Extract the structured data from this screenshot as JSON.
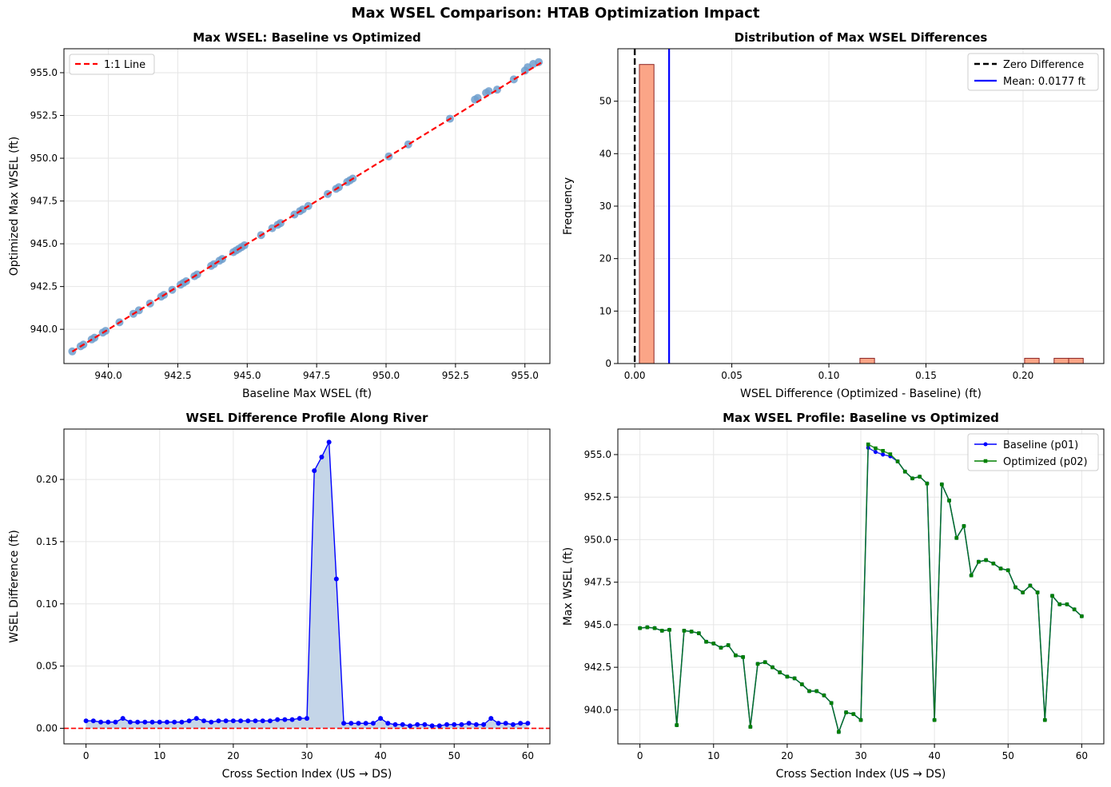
{
  "figure_title": "Max WSEL Comparison: HTAB Optimization Impact",
  "colors": {
    "scatter_point": "#6f9fce",
    "one_to_one": "#ff0000",
    "hist_bar": "#fba587",
    "hist_edge": "#8b2323",
    "zero_line": "#000000",
    "mean_line": "#0000ff",
    "diff_line": "#0000ff",
    "diff_fill": "#c4d5e8",
    "baseline": "#0000ff",
    "optimized": "#008000",
    "grid": "#e6e6e6"
  },
  "chart_data": [
    {
      "id": "scatter",
      "type": "scatter",
      "title": "Max WSEL: Baseline vs Optimized",
      "xlabel": "Baseline Max WSEL (ft)",
      "ylabel": "Optimized Max WSEL (ft)",
      "xlim": [
        938.4,
        955.9
      ],
      "ylim": [
        938.0,
        956.4
      ],
      "xticks": [
        940,
        942.5,
        945,
        947.5,
        950,
        952.5,
        955
      ],
      "xtick_labels": [
        "940.0",
        "942.5",
        "945.0",
        "947.5",
        "950.0",
        "952.5",
        "955.0"
      ],
      "yticks": [
        940,
        942.5,
        945,
        947.5,
        950,
        952.5,
        955
      ],
      "ytick_labels": [
        "940.0",
        "942.5",
        "945.0",
        "947.5",
        "950.0",
        "952.5",
        "955.0"
      ],
      "grid": true,
      "legend_position": "upper-left",
      "legend": [
        "1:1 Line"
      ],
      "reference_line": [
        938.7,
        955.6
      ],
      "points": [
        [
          938.7,
          938.71
        ],
        [
          939.0,
          939.01
        ],
        [
          939.1,
          939.11
        ],
        [
          939.4,
          939.41
        ],
        [
          939.5,
          939.51
        ],
        [
          939.8,
          939.81
        ],
        [
          939.9,
          939.91
        ],
        [
          940.4,
          940.41
        ],
        [
          940.9,
          940.91
        ],
        [
          941.1,
          941.11
        ],
        [
          941.5,
          941.51
        ],
        [
          941.9,
          941.91
        ],
        [
          942.0,
          942.01
        ],
        [
          942.3,
          942.31
        ],
        [
          942.6,
          942.61
        ],
        [
          942.7,
          942.71
        ],
        [
          942.8,
          942.81
        ],
        [
          943.1,
          943.11
        ],
        [
          943.2,
          943.21
        ],
        [
          943.7,
          943.71
        ],
        [
          943.8,
          943.81
        ],
        [
          944.0,
          944.01
        ],
        [
          944.1,
          944.11
        ],
        [
          944.5,
          944.51
        ],
        [
          944.6,
          944.61
        ],
        [
          944.7,
          944.71
        ],
        [
          944.8,
          944.81
        ],
        [
          944.9,
          944.91
        ],
        [
          945.5,
          945.51
        ],
        [
          945.9,
          945.91
        ],
        [
          946.1,
          946.11
        ],
        [
          946.2,
          946.21
        ],
        [
          946.7,
          946.71
        ],
        [
          946.9,
          946.91
        ],
        [
          947.0,
          947.01
        ],
        [
          947.2,
          947.21
        ],
        [
          947.9,
          947.91
        ],
        [
          948.2,
          948.21
        ],
        [
          948.3,
          948.31
        ],
        [
          948.6,
          948.61
        ],
        [
          948.7,
          948.71
        ],
        [
          948.8,
          948.81
        ],
        [
          950.1,
          950.11
        ],
        [
          950.8,
          950.81
        ],
        [
          952.3,
          952.31
        ],
        [
          953.2,
          953.43
        ],
        [
          953.3,
          953.52
        ],
        [
          953.6,
          953.82
        ],
        [
          953.7,
          953.92
        ],
        [
          954.0,
          954.01
        ],
        [
          954.6,
          954.61
        ],
        [
          955.0,
          955.12
        ],
        [
          955.1,
          955.32
        ],
        [
          955.3,
          955.51
        ],
        [
          955.5,
          955.62
        ]
      ]
    },
    {
      "id": "histogram",
      "type": "bar",
      "title": "Distribution of Max WSEL Differences",
      "xlabel": "WSEL Difference (Optimized - Baseline) (ft)",
      "ylabel": "Frequency",
      "xlim": [
        -0.0087,
        0.2416
      ],
      "ylim": [
        0,
        60
      ],
      "xticks": [
        0,
        0.05,
        0.1,
        0.15,
        0.2
      ],
      "xtick_labels": [
        "0.00",
        "0.05",
        "0.10",
        "0.15",
        "0.20"
      ],
      "yticks": [
        0,
        10,
        20,
        30,
        40,
        50
      ],
      "ytick_labels": [
        "0",
        "10",
        "20",
        "30",
        "40",
        "50"
      ],
      "grid": true,
      "legend_position": "upper-right",
      "legend": [
        "Zero Difference",
        "Mean: 0.0177 ft"
      ],
      "mean": 0.0177,
      "bins": [
        {
          "x0": 0.0024,
          "x1": 0.0099,
          "count": 57
        },
        {
          "x0": 0.116,
          "x1": 0.1235,
          "count": 1
        },
        {
          "x0": 0.2008,
          "x1": 0.2083,
          "count": 1
        },
        {
          "x0": 0.216,
          "x1": 0.2235,
          "count": 1
        },
        {
          "x0": 0.2235,
          "x1": 0.231,
          "count": 1
        }
      ]
    },
    {
      "id": "difference-profile",
      "type": "line",
      "title": "WSEL Difference Profile Along River",
      "xlabel": "Cross Section Index (US → DS)",
      "ylabel": "WSEL Difference (ft)",
      "xlim": [
        -3,
        63
      ],
      "ylim": [
        -0.0125,
        0.2405
      ],
      "xticks": [
        0,
        10,
        20,
        30,
        40,
        50,
        60
      ],
      "xtick_labels": [
        "0",
        "10",
        "20",
        "30",
        "40",
        "50",
        "60"
      ],
      "yticks": [
        0,
        0.05,
        0.1,
        0.15,
        0.2
      ],
      "ytick_labels": [
        "0.00",
        "0.05",
        "0.10",
        "0.15",
        "0.20"
      ],
      "grid": true,
      "zero_line": 0,
      "values": [
        0.006,
        0.006,
        0.005,
        0.005,
        0.005,
        0.008,
        0.005,
        0.005,
        0.005,
        0.005,
        0.005,
        0.005,
        0.005,
        0.005,
        0.006,
        0.008,
        0.006,
        0.005,
        0.006,
        0.006,
        0.006,
        0.006,
        0.006,
        0.006,
        0.006,
        0.006,
        0.007,
        0.007,
        0.007,
        0.008,
        0.008,
        0.207,
        0.218,
        0.23,
        0.12,
        0.004,
        0.004,
        0.004,
        0.004,
        0.004,
        0.008,
        0.004,
        0.003,
        0.003,
        0.002,
        0.003,
        0.003,
        0.002,
        0.002,
        0.003,
        0.003,
        0.003,
        0.004,
        0.003,
        0.003,
        0.008,
        0.004,
        0.004,
        0.003,
        0.004,
        0.004
      ]
    },
    {
      "id": "wsel-profile",
      "type": "line",
      "title": "Max WSEL Profile: Baseline vs Optimized",
      "xlabel": "Cross Section Index (US → DS)",
      "ylabel": "Max WSEL (ft)",
      "xlim": [
        -3,
        63
      ],
      "ylim": [
        938.0,
        956.5
      ],
      "xticks": [
        0,
        10,
        20,
        30,
        40,
        50,
        60
      ],
      "xtick_labels": [
        "0",
        "10",
        "20",
        "30",
        "40",
        "50",
        "60"
      ],
      "yticks": [
        940,
        942.5,
        945,
        947.5,
        950,
        952.5,
        955
      ],
      "ytick_labels": [
        "940.0",
        "942.5",
        "945.0",
        "947.5",
        "950.0",
        "952.5",
        "955.0"
      ],
      "grid": true,
      "legend_position": "upper-right",
      "series": [
        {
          "name": "Baseline (p01)",
          "values": [
            944.8,
            944.85,
            944.8,
            944.65,
            944.7,
            939.1,
            944.65,
            944.6,
            944.5,
            944.0,
            943.9,
            943.65,
            943.8,
            943.2,
            943.1,
            939.0,
            942.7,
            942.8,
            942.5,
            942.2,
            941.95,
            941.85,
            941.5,
            941.1,
            941.1,
            940.85,
            940.4,
            938.7,
            939.85,
            939.75,
            939.4,
            955.4,
            955.15,
            955.0,
            954.9,
            954.6,
            954.0,
            953.6,
            953.7,
            953.3,
            939.4,
            953.25,
            952.3,
            950.1,
            950.8,
            947.9,
            948.7,
            948.8,
            948.6,
            948.3,
            948.2,
            947.2,
            946.9,
            947.3,
            946.9,
            939.4,
            946.7,
            946.2,
            946.2,
            945.9,
            945.5
          ]
        },
        {
          "name": "Optimized (p02)",
          "values": [
            944.8,
            944.85,
            944.8,
            944.65,
            944.7,
            939.1,
            944.65,
            944.6,
            944.5,
            944.0,
            943.9,
            943.65,
            943.8,
            943.2,
            943.1,
            939.0,
            942.7,
            942.8,
            942.5,
            942.2,
            941.95,
            941.85,
            941.5,
            941.1,
            941.1,
            940.85,
            940.4,
            938.7,
            939.85,
            939.75,
            939.4,
            955.6,
            955.37,
            955.22,
            955.02,
            954.6,
            954.0,
            953.6,
            953.7,
            953.3,
            939.4,
            953.25,
            952.3,
            950.1,
            950.8,
            947.9,
            948.7,
            948.8,
            948.6,
            948.3,
            948.2,
            947.2,
            946.9,
            947.3,
            946.9,
            939.4,
            946.7,
            946.2,
            946.2,
            945.9,
            945.5
          ]
        }
      ]
    }
  ]
}
